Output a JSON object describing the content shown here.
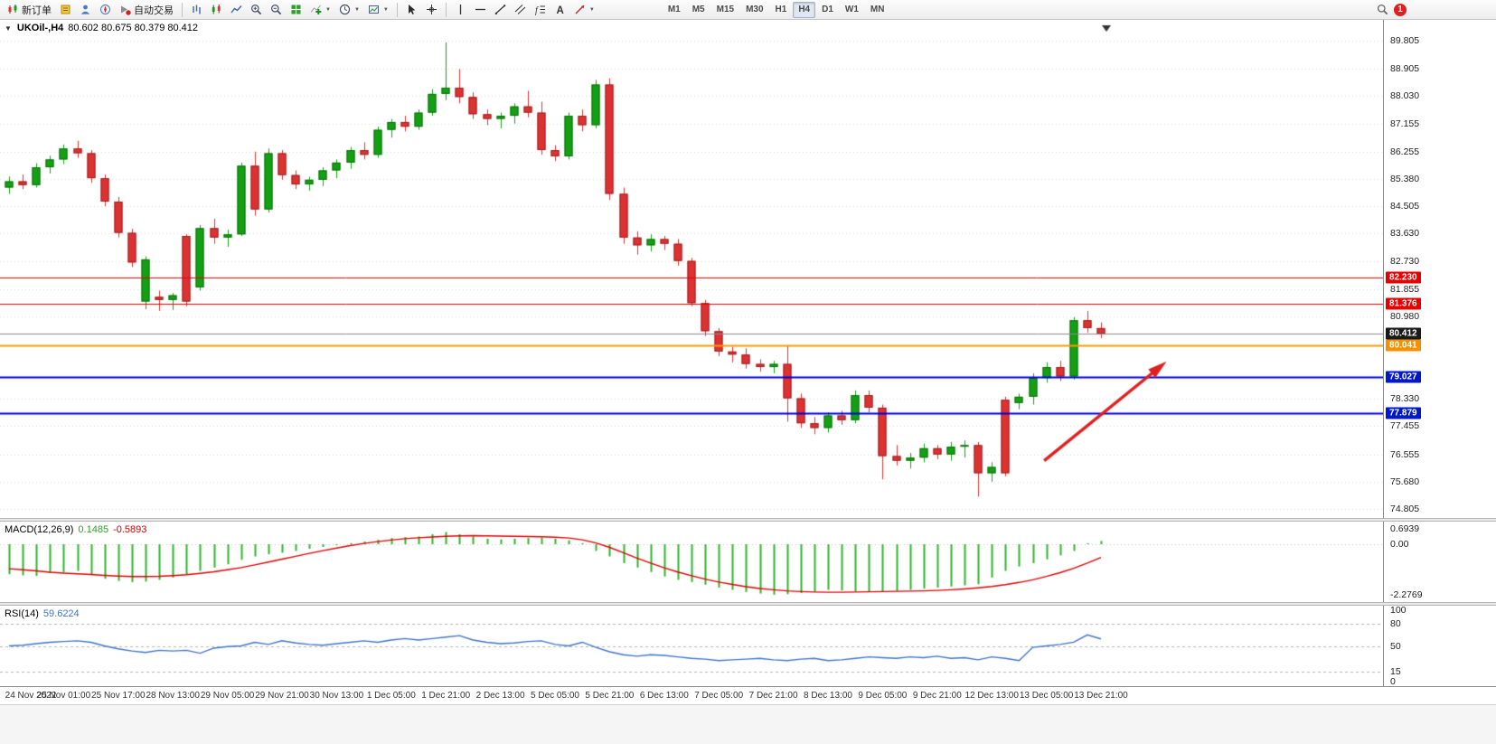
{
  "toolbar": {
    "notification_count": "1",
    "groups": [
      {
        "name": "trade",
        "items": [
          {
            "name": "new-order-button",
            "icon": "new-order-icon",
            "label": "新订单"
          },
          {
            "name": "metaeditor-button",
            "icon": "metaeditor-icon"
          },
          {
            "name": "market-watch-button",
            "icon": "market-watch-icon"
          },
          {
            "name": "navigator-button",
            "icon": "navigator-icon"
          },
          {
            "name": "auto-trading-button",
            "icon": "auto-trading-icon",
            "label": "自动交易"
          }
        ]
      },
      {
        "name": "chart-controls",
        "items": [
          {
            "name": "bar-chart-button",
            "icon": "bar-chart-icon"
          },
          {
            "name": "candlestick-chart-button",
            "icon": "candlestick-icon"
          },
          {
            "name": "line-chart-button",
            "icon": "line-chart-icon"
          },
          {
            "name": "zoom-in-button",
            "icon": "zoom-in-icon"
          },
          {
            "name": "zoom-out-button",
            "icon": "zoom-out-icon"
          },
          {
            "name": "tile-windows-button",
            "icon": "tile-windows-icon"
          },
          {
            "name": "indicators-button",
            "icon": "indicators-icon",
            "dropdown": true
          },
          {
            "name": "periods-button",
            "icon": "clock-icon",
            "dropdown": true
          },
          {
            "name": "templates-button",
            "icon": "template-icon",
            "dropdown": true
          }
        ]
      },
      {
        "name": "pointer",
        "items": [
          {
            "name": "cursor-button",
            "icon": "cursor-icon"
          },
          {
            "name": "crosshair-button",
            "icon": "crosshair-icon"
          }
        ]
      },
      {
        "name": "drawing",
        "items": [
          {
            "name": "vertical-line-button",
            "icon": "vline-icon"
          },
          {
            "name": "horizontal-line-button",
            "icon": "hline-icon"
          },
          {
            "name": "trendline-button",
            "icon": "trendline-icon"
          },
          {
            "name": "channel-button",
            "icon": "channel-icon"
          },
          {
            "name": "fibonacci-button",
            "icon": "fibonacci-icon"
          },
          {
            "name": "text-button",
            "icon": "text-icon"
          },
          {
            "name": "arrows-button",
            "icon": "arrow-icon",
            "dropdown": true
          }
        ]
      },
      {
        "name": "timeframes",
        "items": [
          {
            "name": "tf-m1",
            "label": "M1"
          },
          {
            "name": "tf-m5",
            "label": "M5"
          },
          {
            "name": "tf-m15",
            "label": "M15"
          },
          {
            "name": "tf-m30",
            "label": "M30"
          },
          {
            "name": "tf-h1",
            "label": "H1"
          },
          {
            "name": "tf-h4",
            "label": "H4",
            "active": true
          },
          {
            "name": "tf-d1",
            "label": "D1"
          },
          {
            "name": "tf-w1",
            "label": "W1"
          },
          {
            "name": "tf-mn",
            "label": "MN"
          }
        ]
      }
    ]
  },
  "chart": {
    "symbol": "UKOil-,H4",
    "ohlc": "80.602 80.675 80.379 80.412"
  },
  "indicators": {
    "macd": {
      "title": "MACD(12,26,9)",
      "value_main": "0.1485",
      "value_signal": "-0.5893"
    },
    "rsi": {
      "title": "RSI(14)",
      "value": "59.6224"
    }
  },
  "chart_data": {
    "type": "candlestick",
    "symbol": "UKOil-",
    "timeframe": "H4",
    "up_color": "#14a014",
    "down_color": "#de3232",
    "price_axis": {
      "min": 74.805,
      "max": 89.805,
      "ticks": [
        "89.805",
        "88.905",
        "88.030",
        "87.155",
        "86.255",
        "85.380",
        "84.505",
        "83.630",
        "82.730",
        "81.855",
        "80.980",
        "78.330",
        "77.455",
        "76.555",
        "75.680",
        "74.805"
      ]
    },
    "h_lines": [
      {
        "price": 82.23,
        "label": "82.230",
        "color": "#e80000",
        "label_bg": "#e80000",
        "width": 1
      },
      {
        "price": 81.376,
        "label": "81.376",
        "color": "#e80000",
        "label_bg": "#e80000",
        "width": 1
      },
      {
        "price": 80.412,
        "label": "80.412",
        "color": "#8a8a8a",
        "label_bg": "#1a1a1a",
        "width": 1
      },
      {
        "price": 80.041,
        "label": "80.041",
        "color": "#ff9800",
        "label_bg": "#f59000",
        "width": 2
      },
      {
        "price": 79.027,
        "label": "79.027",
        "color": "#0000dd",
        "label_bg": "#0018c8",
        "width": 2
      },
      {
        "price": 77.879,
        "label": "77.879",
        "color": "#0000dd",
        "label_bg": "#0018c8",
        "width": 2
      }
    ],
    "arrow": {
      "from": {
        "x_frac": 0.755,
        "price": 76.35
      },
      "to": {
        "x_frac": 0.838,
        "price": 79.33
      },
      "color": "#e02020"
    },
    "shift_marker_x_frac": 0.8,
    "candles": [
      [
        85.1,
        85.45,
        84.9,
        85.3
      ],
      [
        85.3,
        85.52,
        85.05,
        85.18
      ],
      [
        85.18,
        85.88,
        85.1,
        85.75
      ],
      [
        85.75,
        86.12,
        85.55,
        86.0
      ],
      [
        86.0,
        86.48,
        85.85,
        86.35
      ],
      [
        86.35,
        86.6,
        86.05,
        86.2
      ],
      [
        86.2,
        86.3,
        85.25,
        85.4
      ],
      [
        85.4,
        85.52,
        84.5,
        84.65
      ],
      [
        84.65,
        84.8,
        83.5,
        83.65
      ],
      [
        83.65,
        83.78,
        82.55,
        82.7
      ],
      [
        81.45,
        82.9,
        81.2,
        82.8
      ],
      [
        81.6,
        81.8,
        81.15,
        81.5
      ],
      [
        81.5,
        81.72,
        81.18,
        81.65
      ],
      [
        83.55,
        83.6,
        81.3,
        81.45
      ],
      [
        81.9,
        83.9,
        81.8,
        83.8
      ],
      [
        83.8,
        84.1,
        83.3,
        83.5
      ],
      [
        83.5,
        83.75,
        83.2,
        83.6
      ],
      [
        83.6,
        85.9,
        83.55,
        85.8
      ],
      [
        85.8,
        86.25,
        84.2,
        84.4
      ],
      [
        84.4,
        86.35,
        84.3,
        86.2
      ],
      [
        86.2,
        86.3,
        85.35,
        85.5
      ],
      [
        85.5,
        85.65,
        85.05,
        85.2
      ],
      [
        85.2,
        85.45,
        85.0,
        85.35
      ],
      [
        85.35,
        85.75,
        85.15,
        85.65
      ],
      [
        85.65,
        86.0,
        85.4,
        85.9
      ],
      [
        85.9,
        86.4,
        85.7,
        86.3
      ],
      [
        86.3,
        86.55,
        86.0,
        86.15
      ],
      [
        86.15,
        87.05,
        86.05,
        86.95
      ],
      [
        86.95,
        87.3,
        86.7,
        87.2
      ],
      [
        87.2,
        87.4,
        86.9,
        87.05
      ],
      [
        87.05,
        87.6,
        86.95,
        87.5
      ],
      [
        87.5,
        88.25,
        87.4,
        88.1
      ],
      [
        88.1,
        89.75,
        87.9,
        88.3
      ],
      [
        88.3,
        88.9,
        87.8,
        88.0
      ],
      [
        88.0,
        88.15,
        87.3,
        87.45
      ],
      [
        87.45,
        87.6,
        87.1,
        87.3
      ],
      [
        87.3,
        87.5,
        87.0,
        87.4
      ],
      [
        87.4,
        87.8,
        87.15,
        87.7
      ],
      [
        87.7,
        88.2,
        87.35,
        87.5
      ],
      [
        87.5,
        87.85,
        86.15,
        86.3
      ],
      [
        86.3,
        86.45,
        85.95,
        86.1
      ],
      [
        86.1,
        87.5,
        86.0,
        87.4
      ],
      [
        87.4,
        87.6,
        86.9,
        87.1
      ],
      [
        87.1,
        88.55,
        87.0,
        88.4
      ],
      [
        88.4,
        88.6,
        84.7,
        84.9
      ],
      [
        84.9,
        85.1,
        83.3,
        83.5
      ],
      [
        83.5,
        83.7,
        82.95,
        83.25
      ],
      [
        83.25,
        83.6,
        83.05,
        83.45
      ],
      [
        83.45,
        83.55,
        83.1,
        83.3
      ],
      [
        83.3,
        83.45,
        82.6,
        82.75
      ],
      [
        82.75,
        82.85,
        81.3,
        81.4
      ],
      [
        81.4,
        81.5,
        80.35,
        80.5
      ],
      [
        80.5,
        80.6,
        79.7,
        79.85
      ],
      [
        79.85,
        80.0,
        79.5,
        79.75
      ],
      [
        79.75,
        79.95,
        79.3,
        79.45
      ],
      [
        79.45,
        79.6,
        79.2,
        79.35
      ],
      [
        79.35,
        79.55,
        79.15,
        79.45
      ],
      [
        79.45,
        80.05,
        77.6,
        78.35
      ],
      [
        78.35,
        78.5,
        77.4,
        77.55
      ],
      [
        77.55,
        77.75,
        77.2,
        77.4
      ],
      [
        77.4,
        77.9,
        77.25,
        77.8
      ],
      [
        77.8,
        77.95,
        77.5,
        77.65
      ],
      [
        77.65,
        78.6,
        77.55,
        78.45
      ],
      [
        78.45,
        78.6,
        77.9,
        78.05
      ],
      [
        78.05,
        78.15,
        75.75,
        76.5
      ],
      [
        76.5,
        76.85,
        76.2,
        76.35
      ],
      [
        76.35,
        76.6,
        76.1,
        76.45
      ],
      [
        76.45,
        76.9,
        76.3,
        76.75
      ],
      [
        76.75,
        76.85,
        76.4,
        76.55
      ],
      [
        76.55,
        76.95,
        76.35,
        76.8
      ],
      [
        76.8,
        77.0,
        76.45,
        76.85
      ],
      [
        76.85,
        76.95,
        75.2,
        75.95
      ],
      [
        75.95,
        76.3,
        75.68,
        76.15
      ],
      [
        78.3,
        78.4,
        75.85,
        75.95
      ],
      [
        78.2,
        78.5,
        78.0,
        78.4
      ],
      [
        78.4,
        79.15,
        78.15,
        79.0
      ],
      [
        79.0,
        79.5,
        78.85,
        79.35
      ],
      [
        79.35,
        79.55,
        78.9,
        79.05
      ],
      [
        79.05,
        80.95,
        78.95,
        80.85
      ],
      [
        80.85,
        81.15,
        80.45,
        80.6
      ],
      [
        80.6,
        80.78,
        80.28,
        80.41
      ]
    ],
    "time_labels": [
      "24 Nov 2022",
      "25 Nov 01:00",
      "25 Nov 17:00",
      "28 Nov 13:00",
      "29 Nov 05:00",
      "29 Nov 21:00",
      "30 Nov 13:00",
      "1 Dec 05:00",
      "1 Dec 21:00",
      "2 Dec 13:00",
      "5 Dec 05:00",
      "5 Dec 21:00",
      "6 Dec 13:00",
      "7 Dec 05:00",
      "7 Dec 21:00",
      "8 Dec 13:00",
      "9 Dec 05:00",
      "9 Dec 21:00",
      "12 Dec 13:00",
      "13 Dec 05:00",
      "13 Dec 21:00"
    ],
    "macd": {
      "max": 0.6939,
      "min": -2.2769,
      "axis_labels": [
        "0.6939",
        "0.00",
        "-2.2769"
      ],
      "histogram_color": "#2db52d",
      "signal_color": "#e00000",
      "histogram": [
        -1.35,
        -1.4,
        -1.42,
        -1.3,
        -1.25,
        -1.2,
        -1.35,
        -1.55,
        -1.65,
        -1.7,
        -1.68,
        -1.6,
        -1.5,
        -1.35,
        -1.2,
        -1.05,
        -0.9,
        -0.7,
        -0.55,
        -0.45,
        -0.38,
        -0.3,
        -0.2,
        -0.12,
        -0.05,
        0.05,
        0.12,
        0.2,
        0.28,
        0.32,
        0.35,
        0.45,
        0.55,
        0.45,
        0.35,
        0.25,
        0.22,
        0.25,
        0.28,
        0.3,
        0.25,
        0.18,
        0.05,
        -0.3,
        -0.55,
        -0.85,
        -1.05,
        -1.25,
        -1.45,
        -1.6,
        -1.7,
        -1.82,
        -1.95,
        -2.05,
        -2.15,
        -2.22,
        -2.27,
        -2.25,
        -2.2,
        -2.12,
        -2.05,
        -2.08,
        -2.12,
        -2.15,
        -2.12,
        -2.1,
        -2.05,
        -2.0,
        -1.95,
        -1.9,
        -1.85,
        -1.8,
        -1.5,
        -1.2,
        -1.0,
        -0.85,
        -0.68,
        -0.5,
        -0.3,
        0.05,
        0.1485
      ],
      "signal": [
        -1.1,
        -1.15,
        -1.2,
        -1.26,
        -1.3,
        -1.33,
        -1.36,
        -1.4,
        -1.43,
        -1.45,
        -1.45,
        -1.44,
        -1.41,
        -1.37,
        -1.31,
        -1.24,
        -1.15,
        -1.05,
        -0.93,
        -0.8,
        -0.67,
        -0.54,
        -0.41,
        -0.29,
        -0.17,
        -0.06,
        0.04,
        0.12,
        0.19,
        0.25,
        0.29,
        0.33,
        0.36,
        0.38,
        0.39,
        0.38,
        0.37,
        0.36,
        0.35,
        0.34,
        0.32,
        0.28,
        0.2,
        0.06,
        -0.14,
        -0.38,
        -0.62,
        -0.85,
        -1.06,
        -1.25,
        -1.42,
        -1.57,
        -1.7,
        -1.81,
        -1.91,
        -1.99,
        -2.05,
        -2.1,
        -2.13,
        -2.15,
        -2.16,
        -2.16,
        -2.15,
        -2.14,
        -2.13,
        -2.12,
        -2.11,
        -2.1,
        -2.08,
        -2.05,
        -2.01,
        -1.96,
        -1.9,
        -1.82,
        -1.72,
        -1.6,
        -1.45,
        -1.28,
        -1.08,
        -0.85,
        -0.5893
      ]
    },
    "rsi": {
      "axis_labels": [
        "100",
        "80",
        "50",
        "15",
        "0"
      ],
      "levels": [
        80,
        50,
        15
      ],
      "line_color": "#3f74c9",
      "values": [
        50,
        51,
        53,
        55,
        56,
        57,
        55,
        50,
        46,
        43,
        41,
        44,
        43,
        44,
        40,
        47,
        49,
        50,
        55,
        52,
        57,
        54,
        52,
        51,
        53,
        55,
        57,
        55,
        58,
        60,
        58,
        60,
        62,
        64,
        58,
        55,
        53,
        54,
        56,
        57,
        52,
        50,
        55,
        48,
        42,
        38,
        36,
        38,
        37,
        35,
        33,
        32,
        30,
        31,
        32,
        33,
        31,
        30,
        32,
        33,
        30,
        31,
        33,
        35,
        34,
        33,
        35,
        34,
        36,
        33,
        34,
        31,
        35,
        33,
        30,
        48,
        50,
        52,
        55,
        65,
        59.62
      ]
    }
  }
}
